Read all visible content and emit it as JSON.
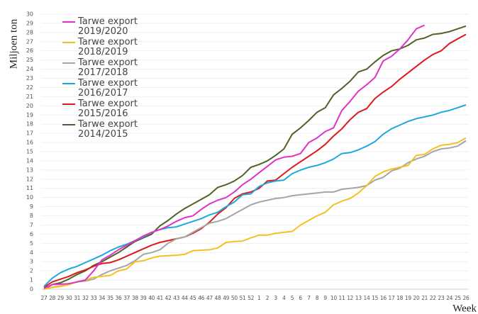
{
  "chart_data": {
    "type": "line",
    "y_label": "Miljoen ton",
    "x_label": "Week",
    "categories": [
      "27",
      "28",
      "29",
      "30",
      "31",
      "32",
      "33",
      "34",
      "35",
      "36",
      "37",
      "38",
      "39",
      "40",
      "41",
      "42",
      "43",
      "44",
      "45",
      "46",
      "47",
      "48",
      "49",
      "50",
      "51",
      "52",
      "1",
      "2",
      "3",
      "4",
      "5",
      "6",
      "7",
      "8",
      "9",
      "10",
      "11",
      "12",
      "13",
      "14",
      "15",
      "16",
      "17",
      "18",
      "19",
      "20",
      "21",
      "22",
      "23",
      "24",
      "25",
      "26"
    ],
    "ylim": [
      0,
      30
    ],
    "yticks": [
      0,
      1,
      2,
      3,
      4,
      5,
      6,
      7,
      8,
      9,
      10,
      11,
      12,
      13,
      14,
      15,
      16,
      17,
      18,
      19,
      20,
      21,
      22,
      23,
      24,
      25,
      26,
      27,
      28,
      29,
      30
    ],
    "grid": true,
    "legend": "upper left",
    "series": [
      {
        "name": "Tarwe export 2019/2020",
        "color": "#e032c8",
        "values": [
          0.1,
          0.5,
          0.55,
          0.6,
          0.8,
          1.0,
          2.0,
          3.2,
          3.7,
          4.3,
          4.8,
          5.3,
          5.8,
          6.2,
          6.5,
          6.9,
          7.4,
          7.8,
          8.0,
          8.7,
          9.3,
          9.7,
          10.0,
          10.6,
          11.4,
          12.0,
          12.7,
          13.4,
          14.1,
          14.4,
          14.5,
          14.8,
          16.0,
          16.5,
          17.2,
          17.6,
          19.5,
          20.5,
          21.6,
          22.3,
          23.1,
          24.9,
          25.4,
          26.2,
          27.2,
          28.4,
          28.8,
          null,
          null,
          null,
          null,
          null
        ]
      },
      {
        "name": "Tarwe export 2018/2019",
        "color": "#f5c022",
        "values": [
          0,
          0.2,
          0.3,
          0.5,
          0.8,
          1.0,
          1.3,
          1.4,
          1.5,
          2.0,
          2.2,
          3.0,
          3.1,
          3.4,
          3.6,
          3.65,
          3.7,
          3.8,
          4.2,
          4.25,
          4.3,
          4.5,
          5.1,
          5.2,
          5.25,
          5.6,
          5.9,
          5.9,
          6.1,
          6.2,
          6.3,
          7.0,
          7.5,
          8.0,
          8.4,
          9.2,
          9.6,
          9.9,
          10.5,
          11.3,
          12.3,
          12.8,
          13.1,
          13.3,
          13.5,
          14.6,
          14.7,
          15.3,
          15.7,
          15.8,
          16.0,
          16.5
        ]
      },
      {
        "name": "Tarwe export 2017/2018",
        "color": "#a5a5a5",
        "values": [
          0,
          0.2,
          0.35,
          0.5,
          0.8,
          0.9,
          1.1,
          1.6,
          2.0,
          2.3,
          2.6,
          3.1,
          3.8,
          4.0,
          4.3,
          5.0,
          5.5,
          5.7,
          6.2,
          6.7,
          7.2,
          7.4,
          7.7,
          8.2,
          8.7,
          9.2,
          9.5,
          9.7,
          9.9,
          10.0,
          10.2,
          10.3,
          10.4,
          10.5,
          10.6,
          10.6,
          10.9,
          11.0,
          11.1,
          11.3,
          11.9,
          12.2,
          12.9,
          13.2,
          13.8,
          14.2,
          14.5,
          15.0,
          15.3,
          15.4,
          15.6,
          16.2
        ]
      },
      {
        "name": "Tarwe export 2016/2017",
        "color": "#1fa8e0",
        "values": [
          0.3,
          1.2,
          1.8,
          2.2,
          2.5,
          2.9,
          3.3,
          3.7,
          4.2,
          4.6,
          4.9,
          5.3,
          5.7,
          6.2,
          6.5,
          6.7,
          6.8,
          7.1,
          7.4,
          7.7,
          8.1,
          8.4,
          9.0,
          9.5,
          10.3,
          10.4,
          11.2,
          11.6,
          11.8,
          11.9,
          12.6,
          13.0,
          13.3,
          13.5,
          13.8,
          14.2,
          14.8,
          14.9,
          15.2,
          15.6,
          16.1,
          16.9,
          17.5,
          17.9,
          18.3,
          18.6,
          18.8,
          19.0,
          19.3,
          19.5,
          19.8,
          20.1
        ]
      },
      {
        "name": "Tarwe export 2015/2016",
        "color": "#e01818",
        "values": [
          0.2,
          0.8,
          1.1,
          1.4,
          1.8,
          2.1,
          2.5,
          2.8,
          2.9,
          3.2,
          3.6,
          4.0,
          4.4,
          4.8,
          5.1,
          5.3,
          5.5,
          5.7,
          6.1,
          6.6,
          7.3,
          8.2,
          8.9,
          9.9,
          10.4,
          10.6,
          11.0,
          11.8,
          11.9,
          12.6,
          13.3,
          13.9,
          14.5,
          15.1,
          15.8,
          16.7,
          17.5,
          18.5,
          19.3,
          19.7,
          20.8,
          21.5,
          22.1,
          22.9,
          23.6,
          24.3,
          25.0,
          25.6,
          26.0,
          26.8,
          27.3,
          27.8
        ]
      },
      {
        "name": "Tarwe export 2014/2015",
        "color": "#4f6228",
        "values": [
          0,
          0.5,
          0.7,
          1.1,
          1.6,
          2.0,
          2.6,
          3.0,
          3.5,
          4.0,
          4.6,
          5.2,
          5.6,
          6.0,
          6.9,
          7.5,
          8.2,
          8.8,
          9.3,
          9.8,
          10.3,
          11.1,
          11.4,
          11.8,
          12.4,
          13.3,
          13.6,
          14.0,
          14.6,
          15.3,
          16.9,
          17.6,
          18.4,
          19.3,
          19.8,
          21.2,
          21.9,
          22.7,
          23.7,
          24.0,
          24.8,
          25.5,
          26.0,
          26.2,
          26.6,
          27.2,
          27.4,
          27.8,
          27.9,
          28.1,
          28.4,
          28.7
        ]
      }
    ]
  }
}
